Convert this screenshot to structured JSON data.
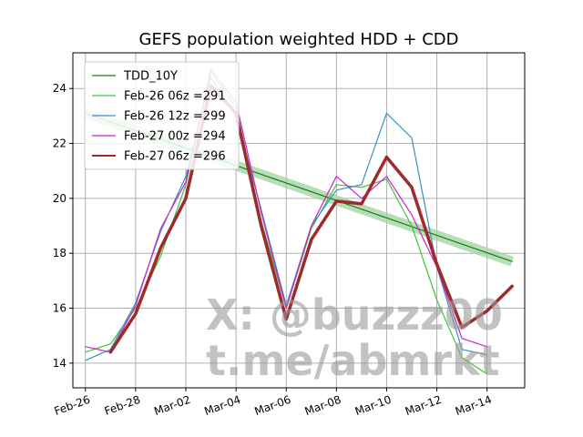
{
  "chart_data": {
    "type": "line",
    "title": "GEFS population weighted HDD + CDD",
    "xlabel": "",
    "ylabel": "",
    "x_ticks": [
      "Feb-26",
      "Feb-28",
      "Mar-02",
      "Mar-04",
      "Mar-06",
      "Mar-08",
      "Mar-10",
      "Mar-12",
      "Mar-14"
    ],
    "y_ticks": [
      14,
      16,
      18,
      20,
      22,
      24
    ],
    "xlim": [
      "2024-02-25T12:00",
      "2024-03-14T12:00"
    ],
    "ylim": [
      13.1,
      25.3
    ],
    "grid": true,
    "legend_position": "top-left",
    "trend_band": {
      "color": "#9fd49f",
      "x": [
        "2024-02-26",
        "2024-03-14"
      ],
      "y": [
        23.1,
        17.7
      ]
    },
    "series": [
      {
        "name": "TDD_10Y",
        "color": "#1a7a1a",
        "width": 1.2,
        "x": [
          "2024-02-26",
          "2024-03-14"
        ],
        "y": [
          23.1,
          17.7
        ]
      },
      {
        "name": "Feb-26 06z =291",
        "color": "#3cc43c",
        "width": 1.2,
        "x": [
          "2024-02-26",
          "2024-02-27",
          "2024-02-28",
          "2024-02-29",
          "2024-03-01",
          "2024-03-02",
          "2024-03-03",
          "2024-03-04",
          "2024-03-05",
          "2024-03-06",
          "2024-03-07",
          "2024-03-08",
          "2024-03-09",
          "2024-03-10",
          "2024-03-11",
          "2024-03-12",
          "2024-03-13"
        ],
        "y": [
          14.4,
          14.7,
          16.0,
          17.9,
          20.5,
          24.6,
          23.3,
          19.2,
          16.0,
          18.9,
          20.5,
          20.4,
          20.7,
          19.0,
          16.3,
          14.2,
          13.6
        ]
      },
      {
        "name": "Feb-26 12z =299",
        "color": "#3a8fc4",
        "width": 1.2,
        "x": [
          "2024-02-26",
          "2024-02-27",
          "2024-02-28",
          "2024-02-29",
          "2024-03-01",
          "2024-03-02",
          "2024-03-03",
          "2024-03-04",
          "2024-03-05",
          "2024-03-06",
          "2024-03-07",
          "2024-03-08",
          "2024-03-09",
          "2024-03-10",
          "2024-03-11",
          "2024-03-12",
          "2024-03-13"
        ],
        "y": [
          14.1,
          14.5,
          16.2,
          18.8,
          20.8,
          24.4,
          23.0,
          19.6,
          16.1,
          19.0,
          20.3,
          20.5,
          23.1,
          22.2,
          17.5,
          14.5,
          14.3
        ]
      },
      {
        "name": "Feb-27 00z =294",
        "color": "#cc22cc",
        "width": 1.2,
        "x": [
          "2024-02-26",
          "2024-02-27",
          "2024-02-28",
          "2024-02-29",
          "2024-03-01",
          "2024-03-02",
          "2024-03-03",
          "2024-03-04",
          "2024-03-05",
          "2024-03-06",
          "2024-03-07",
          "2024-03-08",
          "2024-03-09",
          "2024-03-10",
          "2024-03-11",
          "2024-03-12",
          "2024-03-13"
        ],
        "y": [
          14.6,
          14.4,
          16.1,
          18.9,
          20.6,
          24.7,
          23.5,
          19.5,
          16.0,
          19.0,
          20.8,
          20.0,
          20.8,
          19.4,
          17.5,
          14.9,
          14.6
        ]
      },
      {
        "name": "Feb-27 06z =296",
        "color": "#9e2b2b",
        "width": 3.5,
        "x": [
          "2024-02-27",
          "2024-02-28",
          "2024-02-29",
          "2024-03-01",
          "2024-03-02",
          "2024-03-03",
          "2024-03-04",
          "2024-03-05",
          "2024-03-06",
          "2024-03-07",
          "2024-03-08",
          "2024-03-09",
          "2024-03-10",
          "2024-03-11",
          "2024-03-12",
          "2024-03-13",
          "2024-03-14"
        ],
        "y": [
          14.4,
          15.8,
          18.2,
          20.0,
          24.1,
          23.1,
          19.0,
          15.6,
          18.5,
          19.9,
          19.8,
          21.5,
          20.4,
          17.6,
          15.3,
          15.9,
          16.8
        ]
      }
    ]
  },
  "watermark": {
    "line1": "X: @buzzz00",
    "line2": "t.me/abmrkt"
  }
}
